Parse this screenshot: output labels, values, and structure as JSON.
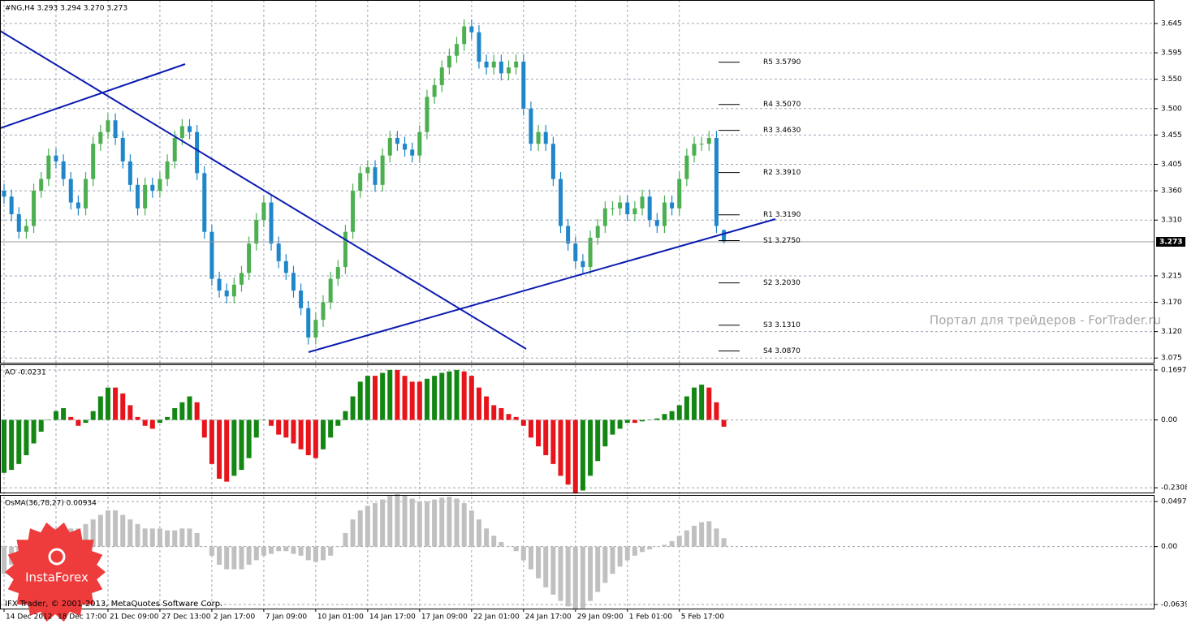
{
  "chart_data": [
    {
      "type": "candlestick",
      "title": "#NG,H4  3.293 3.294 3.270 3.273",
      "categories": [
        "14 Dec 2012",
        null,
        null,
        null,
        null,
        null,
        null,
        "18 Dec 17:00",
        null,
        null,
        null,
        null,
        null,
        null,
        "21 Dec 09:00",
        null,
        null,
        null,
        null,
        null,
        null,
        "27 Dec 13:00",
        null,
        null,
        null,
        null,
        null,
        null,
        "2 Jan 17:00",
        null,
        null,
        null,
        null,
        null,
        null,
        "7 Jan 09:00",
        null,
        null,
        null,
        null,
        null,
        null,
        "10 Jan 01:00",
        null,
        null,
        null,
        null,
        null,
        null,
        "14 Jan 17:00",
        null,
        null,
        null,
        null,
        null,
        null,
        "17 Jan 09:00",
        null,
        null,
        null,
        null,
        null,
        null,
        "22 Jan 01:00",
        null,
        null,
        null,
        null,
        null,
        null,
        "24 Jan 17:00",
        null,
        null,
        null,
        null,
        null,
        null,
        "29 Jan 09:00",
        null,
        null,
        null,
        null,
        null,
        null,
        "1 Feb 01:00",
        null,
        null,
        null,
        null,
        null,
        null,
        "5 Feb 17:00",
        null,
        null,
        null,
        null,
        null,
        null
      ],
      "open": [
        3.36,
        3.35,
        3.32,
        3.29,
        3.3,
        3.36,
        3.38,
        3.42,
        3.41,
        3.38,
        3.34,
        3.33,
        3.38,
        3.44,
        3.46,
        3.48,
        3.45,
        3.41,
        3.37,
        3.33,
        3.37,
        3.36,
        3.38,
        3.41,
        3.45,
        3.47,
        3.46,
        3.39,
        3.29,
        3.21,
        3.19,
        3.18,
        3.2,
        3.22,
        3.27,
        3.31,
        3.34,
        3.27,
        3.24,
        3.22,
        3.19,
        3.16,
        3.11,
        3.14,
        3.17,
        3.21,
        3.23,
        3.29,
        3.36,
        3.39,
        3.4,
        3.37,
        3.42,
        3.45,
        3.44,
        3.43,
        3.42,
        3.46,
        3.52,
        3.54,
        3.57,
        3.59,
        3.61,
        3.64,
        3.63,
        3.58,
        3.57,
        3.58,
        3.56,
        3.57,
        3.58,
        3.5,
        3.44,
        3.46,
        3.44,
        3.38,
        3.3,
        3.27,
        3.24,
        3.23,
        3.28,
        3.3,
        3.33,
        3.33,
        3.34,
        3.32,
        3.33,
        3.35,
        3.31,
        3.3,
        3.34,
        3.33,
        3.38,
        3.42,
        3.44,
        3.44,
        3.45,
        3.293
      ],
      "high": [
        3.372,
        3.362,
        3.332,
        3.312,
        3.372,
        3.392,
        3.432,
        3.432,
        3.422,
        3.392,
        3.352,
        3.392,
        3.452,
        3.472,
        3.492,
        3.492,
        3.462,
        3.422,
        3.382,
        3.382,
        3.382,
        3.392,
        3.422,
        3.462,
        3.482,
        3.482,
        3.472,
        3.402,
        3.302,
        3.222,
        3.202,
        3.212,
        3.232,
        3.282,
        3.322,
        3.352,
        3.352,
        3.282,
        3.252,
        3.232,
        3.202,
        3.172,
        3.152,
        3.182,
        3.222,
        3.242,
        3.302,
        3.372,
        3.402,
        3.412,
        3.412,
        3.432,
        3.462,
        3.462,
        3.452,
        3.442,
        3.472,
        3.532,
        3.552,
        3.582,
        3.602,
        3.622,
        3.652,
        3.652,
        3.642,
        3.592,
        3.592,
        3.592,
        3.582,
        3.592,
        3.592,
        3.512,
        3.472,
        3.472,
        3.452,
        3.392,
        3.312,
        3.282,
        3.252,
        3.292,
        3.312,
        3.342,
        3.342,
        3.352,
        3.352,
        3.342,
        3.362,
        3.362,
        3.322,
        3.352,
        3.352,
        3.392,
        3.432,
        3.452,
        3.452,
        3.462,
        3.462,
        3.294
      ],
      "low": [
        3.338,
        3.308,
        3.278,
        3.278,
        3.288,
        3.348,
        3.368,
        3.398,
        3.368,
        3.328,
        3.318,
        3.318,
        3.368,
        3.428,
        3.448,
        3.438,
        3.398,
        3.358,
        3.318,
        3.318,
        3.348,
        3.348,
        3.368,
        3.398,
        3.438,
        3.448,
        3.378,
        3.278,
        3.198,
        3.178,
        3.168,
        3.168,
        3.188,
        3.208,
        3.258,
        3.298,
        3.258,
        3.228,
        3.208,
        3.178,
        3.148,
        3.098,
        3.098,
        3.128,
        3.158,
        3.198,
        3.218,
        3.278,
        3.348,
        3.378,
        3.358,
        3.358,
        3.408,
        3.428,
        3.418,
        3.408,
        3.408,
        3.448,
        3.508,
        3.528,
        3.558,
        3.578,
        3.598,
        3.618,
        3.568,
        3.558,
        3.558,
        3.548,
        3.548,
        3.558,
        3.488,
        3.428,
        3.428,
        3.428,
        3.368,
        3.288,
        3.258,
        3.228,
        3.218,
        3.218,
        3.268,
        3.288,
        3.318,
        3.318,
        3.308,
        3.308,
        3.318,
        3.298,
        3.288,
        3.288,
        3.318,
        3.318,
        3.368,
        3.408,
        3.428,
        3.428,
        3.288,
        3.27
      ],
      "close": [
        3.35,
        3.32,
        3.29,
        3.3,
        3.36,
        3.38,
        3.42,
        3.41,
        3.38,
        3.34,
        3.33,
        3.38,
        3.44,
        3.46,
        3.48,
        3.45,
        3.41,
        3.37,
        3.33,
        3.37,
        3.36,
        3.38,
        3.41,
        3.45,
        3.47,
        3.46,
        3.39,
        3.29,
        3.21,
        3.19,
        3.18,
        3.2,
        3.22,
        3.27,
        3.31,
        3.34,
        3.27,
        3.24,
        3.22,
        3.19,
        3.16,
        3.11,
        3.14,
        3.17,
        3.21,
        3.23,
        3.29,
        3.36,
        3.39,
        3.4,
        3.37,
        3.42,
        3.45,
        3.44,
        3.43,
        3.42,
        3.46,
        3.52,
        3.54,
        3.57,
        3.59,
        3.61,
        3.64,
        3.63,
        3.58,
        3.57,
        3.58,
        3.56,
        3.57,
        3.58,
        3.5,
        3.44,
        3.46,
        3.44,
        3.38,
        3.3,
        3.27,
        3.24,
        3.23,
        3.28,
        3.3,
        3.33,
        3.33,
        3.34,
        3.32,
        3.33,
        3.35,
        3.31,
        3.3,
        3.34,
        3.33,
        3.38,
        3.42,
        3.44,
        3.44,
        3.45,
        3.3,
        3.273
      ],
      "up_color": "#4caf50",
      "down_color": "#1f86c9",
      "ylim": [
        3.067,
        3.685
      ],
      "yticks": [
        3.645,
        3.595,
        {
          "value": 3.55,
          "label": "3.550"
        },
        {
          "value": 3.5,
          "label": "3.500"
        },
        3.455,
        3.405,
        {
          "value": 3.36,
          "label": "3.360"
        },
        {
          "value": 3.31,
          "label": "3.310"
        },
        3.215,
        {
          "value": 3.17,
          "label": "3.170"
        },
        {
          "value": 3.12,
          "label": "3.120"
        },
        3.075
      ],
      "current_price": 3.273,
      "pivots": [
        {
          "value": 3.579,
          "label": "R5 3.5790"
        },
        {
          "value": 3.507,
          "label": "R4 3.5070"
        },
        {
          "value": 3.463,
          "label": "R3 3.4630"
        },
        {
          "value": 3.391,
          "label": "R2 3.3910"
        },
        {
          "value": 3.319,
          "label": "R1 3.3190"
        },
        {
          "value": 3.275,
          "label": "S1 3.2750"
        },
        {
          "value": 3.203,
          "label": "S2 3.2030"
        },
        {
          "value": 3.131,
          "label": "S3 3.1310"
        },
        {
          "value": 3.087,
          "label": "S4 3.0870"
        }
      ],
      "grid": true
    },
    {
      "type": "bar",
      "title": "AO -0.0231",
      "values": [
        -0.18,
        -0.17,
        -0.15,
        -0.12,
        -0.08,
        -0.04,
        0.0,
        0.03,
        0.04,
        0.01,
        -0.02,
        -0.01,
        0.03,
        0.08,
        0.11,
        0.11,
        0.09,
        0.05,
        0.01,
        -0.02,
        -0.03,
        -0.01,
        0.01,
        0.04,
        0.06,
        0.08,
        0.06,
        -0.06,
        -0.15,
        -0.2,
        -0.21,
        -0.19,
        -0.17,
        -0.13,
        -0.06,
        0.0,
        -0.02,
        -0.05,
        -0.06,
        -0.08,
        -0.1,
        -0.12,
        -0.13,
        -0.1,
        -0.06,
        -0.02,
        0.03,
        0.08,
        0.13,
        0.15,
        0.15,
        0.16,
        0.17,
        0.17,
        0.15,
        0.13,
        0.13,
        0.14,
        0.15,
        0.16,
        0.165,
        0.17,
        0.165,
        0.15,
        0.11,
        0.08,
        0.05,
        0.04,
        0.02,
        0.01,
        -0.02,
        -0.06,
        -0.09,
        -0.12,
        -0.15,
        -0.19,
        -0.22,
        -0.25,
        -0.24,
        -0.19,
        -0.14,
        -0.09,
        -0.05,
        -0.03,
        -0.01,
        -0.01,
        -0.005,
        0.0,
        0.005,
        0.02,
        0.03,
        0.05,
        0.08,
        0.11,
        0.12,
        0.11,
        0.06,
        -0.0231
      ],
      "up_color": "#138613",
      "down_color": "#e8141b",
      "ylim": [
        -0.247,
        0.189
      ],
      "yticks": [
        0.1697,
        {
          "value": 0,
          "label": "0.00"
        },
        -0.2308
      ],
      "grid": true
    },
    {
      "type": "bar",
      "title": "OsMA(36,78,27) 0.00934",
      "values": [
        -0.03,
        -0.02,
        -0.01,
        0.0,
        0.005,
        0.01,
        0.015,
        0.02,
        0.02,
        0.02,
        0.02,
        0.025,
        0.03,
        0.035,
        0.04,
        0.04,
        0.035,
        0.03,
        0.025,
        0.02,
        0.02,
        0.02,
        0.018,
        0.018,
        0.02,
        0.02,
        0.015,
        0.0,
        -0.01,
        -0.02,
        -0.025,
        -0.025,
        -0.025,
        -0.02,
        -0.015,
        -0.01,
        -0.008,
        -0.005,
        -0.005,
        -0.008,
        -0.01,
        -0.015,
        -0.017,
        -0.015,
        -0.01,
        0.0,
        0.015,
        0.03,
        0.04,
        0.045,
        0.048,
        0.052,
        0.056,
        0.058,
        0.057,
        0.053,
        0.05,
        0.05,
        0.052,
        0.054,
        0.055,
        0.053,
        0.048,
        0.04,
        0.03,
        0.02,
        0.012,
        0.005,
        0.0,
        -0.005,
        -0.015,
        -0.025,
        -0.035,
        -0.045,
        -0.053,
        -0.06,
        -0.066,
        -0.07,
        -0.068,
        -0.06,
        -0.05,
        -0.04,
        -0.03,
        -0.022,
        -0.015,
        -0.01,
        -0.006,
        -0.003,
        0.0,
        0.002,
        0.006,
        0.012,
        0.018,
        0.023,
        0.027,
        0.028,
        0.02,
        0.00934
      ],
      "color": "#c0c0c0",
      "ylim": [
        -0.0684,
        0.057
      ],
      "yticks": [
        0.04975,
        {
          "value": 0,
          "label": "0.00"
        },
        -0.0639
      ],
      "grid": true
    }
  ],
  "watermark": "Портал для трейдеров - ForTrader.ru",
  "copyright": "IFX Trader, © 2001-2013, MetaQuotes Software Corp.",
  "logo": "InstaForex"
}
